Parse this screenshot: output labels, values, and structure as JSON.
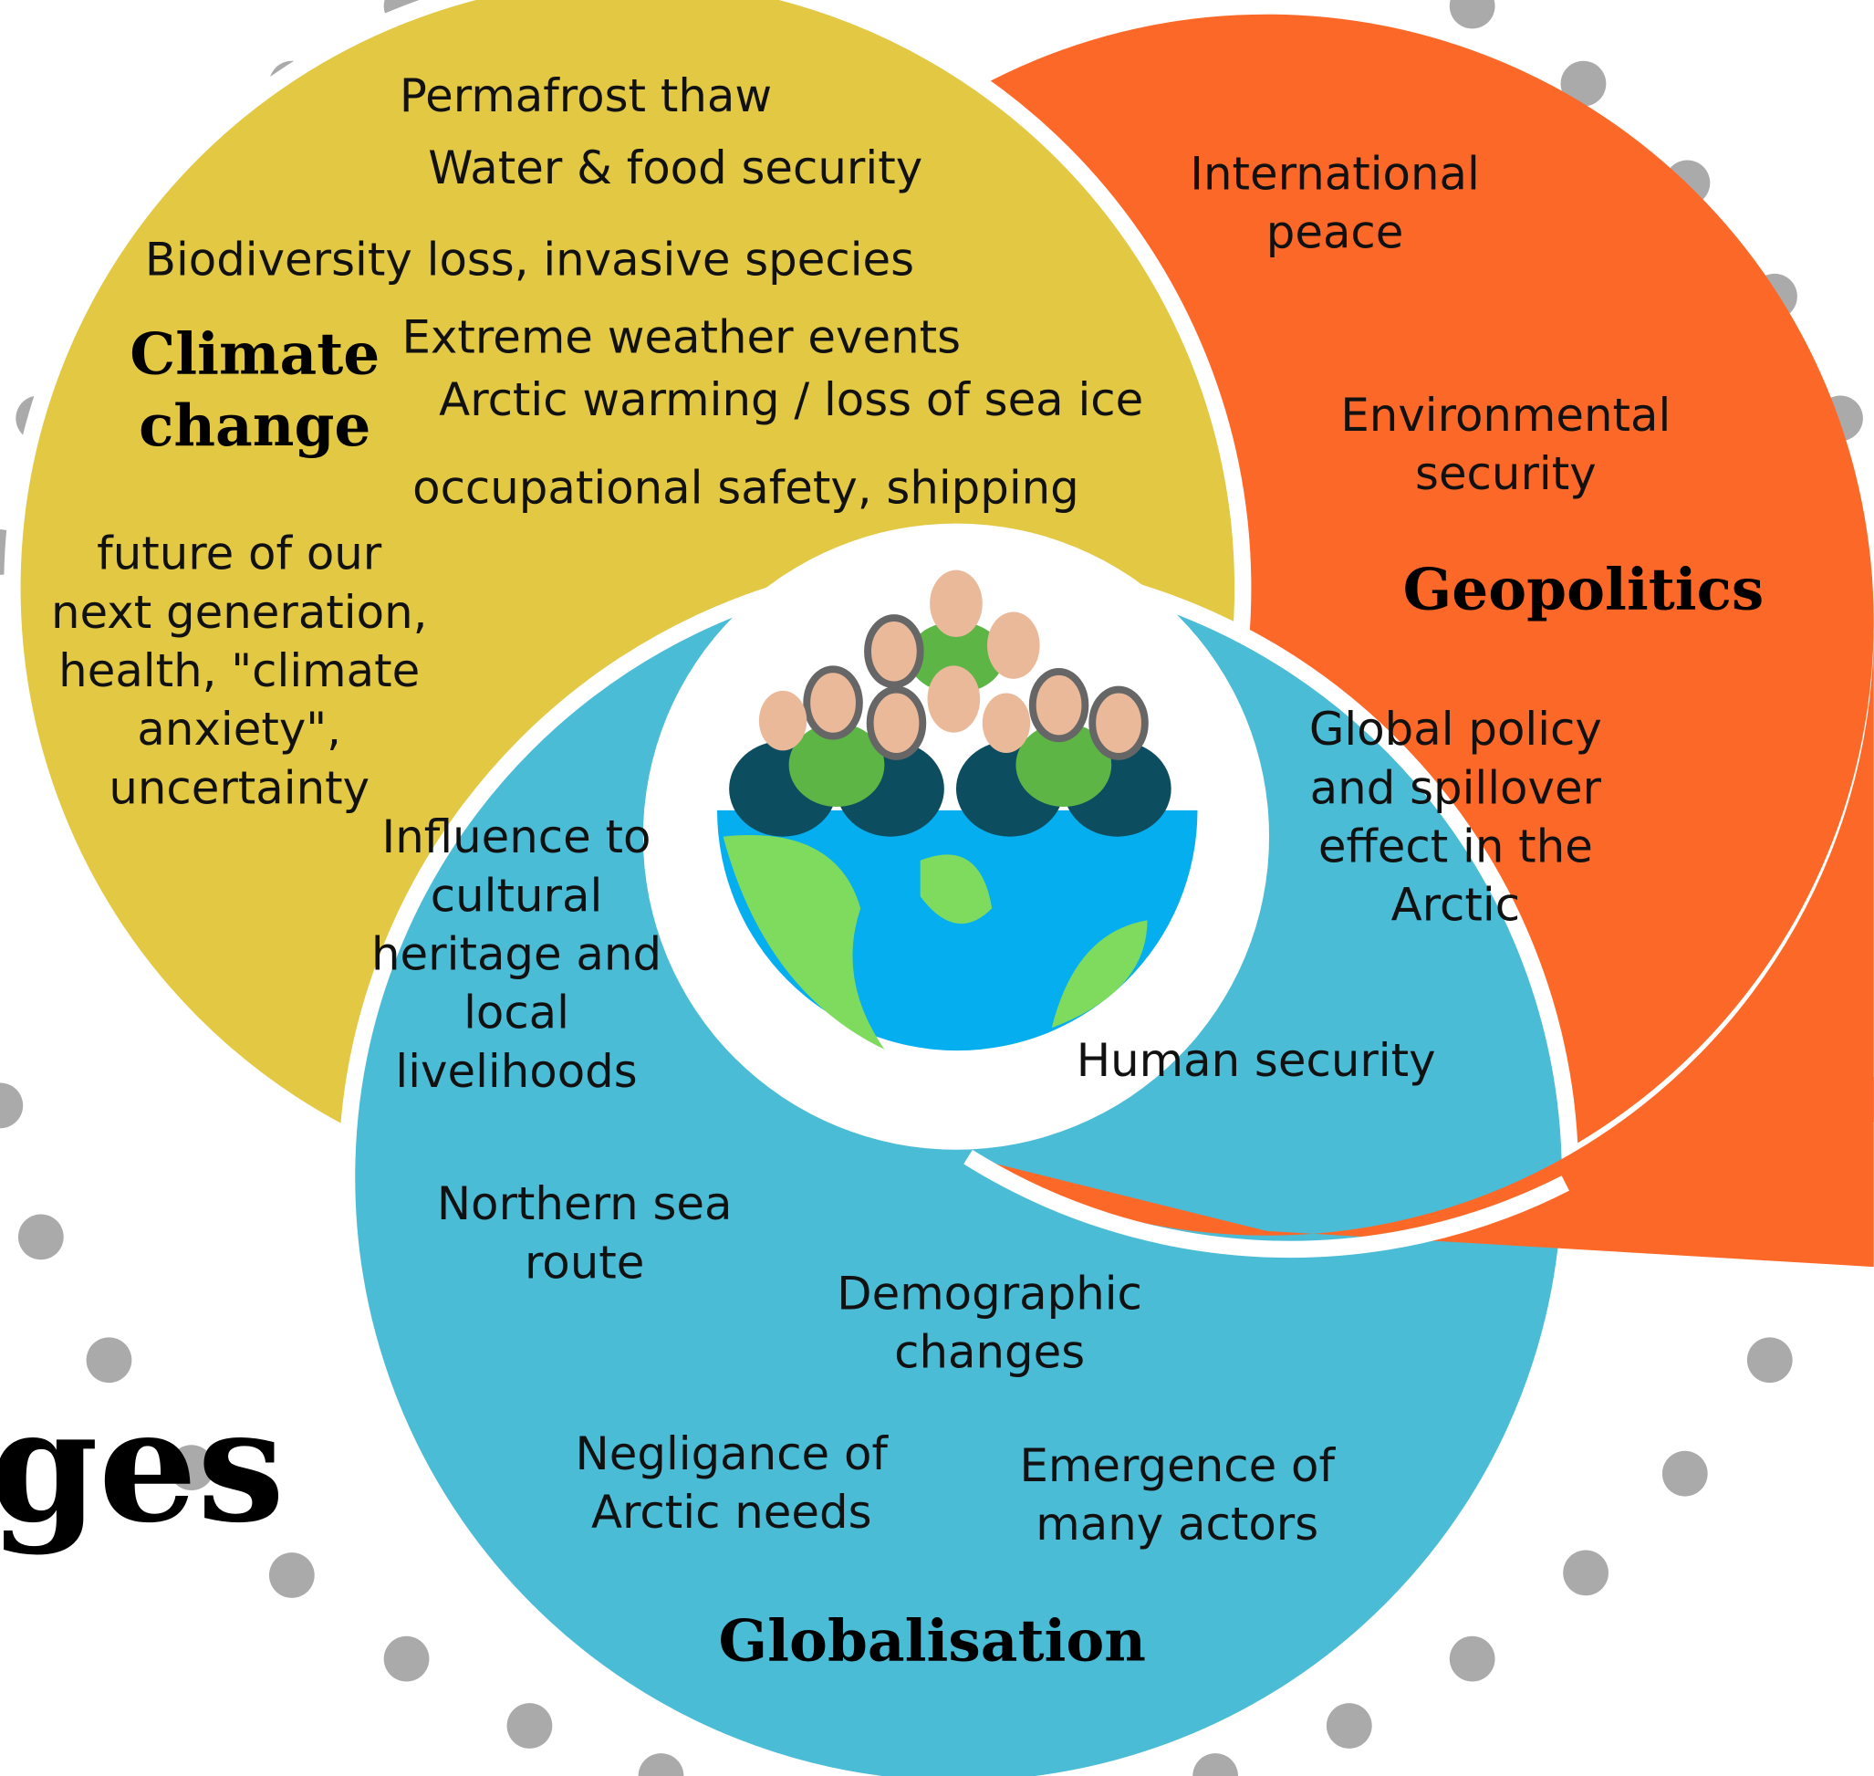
{
  "fragment": "ages",
  "climate_change": {
    "title": [
      "Climate",
      "change"
    ],
    "items": [
      [
        "Permafrost thaw"
      ],
      [
        "Water & food security"
      ],
      [
        "Biodiversity loss, invasive species"
      ],
      [
        "Extreme weather events"
      ],
      [
        "Arctic warming / loss of sea ice"
      ],
      [
        "occupational safety, shipping"
      ],
      [
        "future of our",
        "next generation,",
        "health,  \"climate",
        "anxiety\",",
        "uncertainty"
      ]
    ]
  },
  "geopolitics": {
    "title": [
      "Geopolitics"
    ],
    "items": [
      [
        "International",
        "peace"
      ],
      [
        "Environmental",
        "security"
      ],
      [
        "Global policy",
        "and spillover",
        "effect in the",
        "Arctic"
      ],
      [
        "Human security"
      ]
    ]
  },
  "globalisation": {
    "title": [
      "Globalisation"
    ],
    "items": [
      [
        "Influence to",
        "cultural",
        "heritage and",
        "local",
        "livelihoods"
      ],
      [
        "Northern sea",
        "route"
      ],
      [
        "Demographic",
        "changes"
      ],
      [
        "Negligance of",
        "Arctic needs"
      ],
      [
        "Emergence of",
        "many actors"
      ]
    ]
  }
}
